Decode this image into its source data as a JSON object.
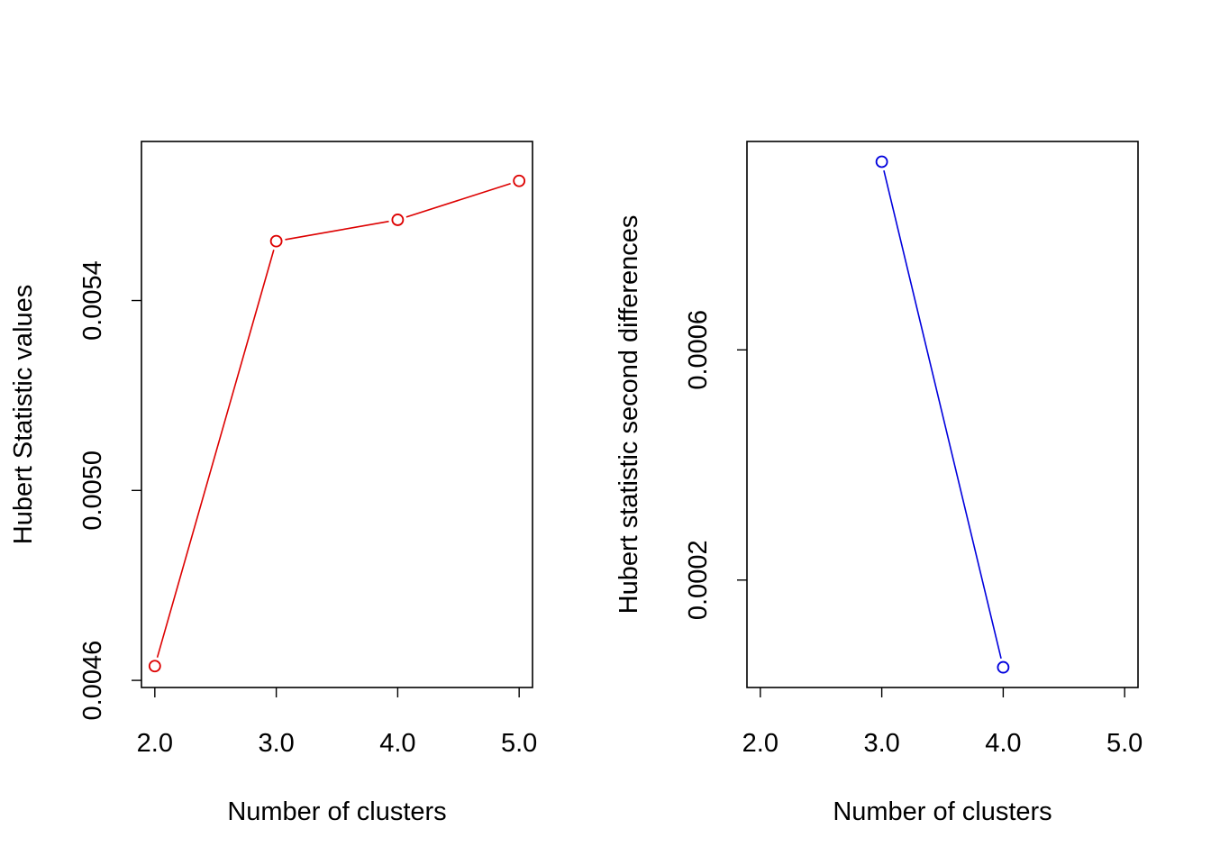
{
  "chart_data": [
    {
      "type": "line",
      "title": "",
      "xlabel": "Number of clusters",
      "ylabel": "Hubert Statistic values",
      "x": [
        2,
        3,
        4,
        5
      ],
      "x_tick_values": [
        2,
        3,
        4,
        5
      ],
      "x_tick_labels": [
        "2.0",
        "3.0",
        "4.0",
        "5.0"
      ],
      "xlim": [
        1.89,
        5.11
      ],
      "y_tick_values": [
        0.0046,
        0.005,
        0.0054
      ],
      "y_tick_labels": [
        "0.0046",
        "0.0050",
        "0.0054"
      ],
      "ylim": [
        0.004585,
        0.005735
      ],
      "series": [
        {
          "values": [
            0.00463,
            0.005525,
            0.00557,
            0.005652
          ],
          "color": "#dd0000"
        }
      ],
      "markers": "open-circle",
      "grid": false,
      "legend": "none"
    },
    {
      "type": "line",
      "title": "",
      "xlabel": "Number of clusters",
      "ylabel": "Hubert statistic second differences",
      "x": [
        3,
        4
      ],
      "x_tick_values": [
        2,
        3,
        4,
        5
      ],
      "x_tick_labels": [
        "2.0",
        "3.0",
        "4.0",
        "5.0"
      ],
      "xlim": [
        1.89,
        5.11
      ],
      "y_tick_values": [
        0.0002,
        0.0006
      ],
      "y_tick_labels": [
        "0.0002",
        "0.0006"
      ],
      "ylim": [
        1.33e-05,
        0.0009622
      ],
      "series": [
        {
          "values": [
            0.000927,
            4.84e-05
          ],
          "color": "#0000dd"
        }
      ],
      "markers": "open-circle",
      "grid": false,
      "legend": "none"
    }
  ]
}
